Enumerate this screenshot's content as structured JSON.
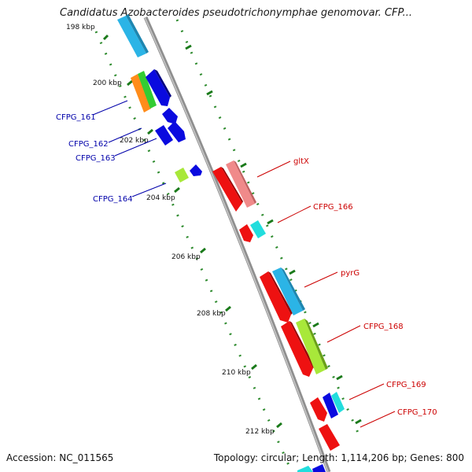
{
  "header": {
    "title": "Candidatus Azobacteroides pseudotrichonymphae genomovar. CFP..."
  },
  "footer": {
    "accession": "Accession: NC_011565",
    "stats": "Topology: circular; Length: 1,114,206 bp; Genes: 800"
  },
  "map": {
    "kbp_labels": [
      "198 kbp",
      "200 kbp",
      "202 kbp",
      "204 kbp",
      "206 kbp",
      "208 kbp",
      "210 kbp",
      "212 kbp"
    ],
    "left_labels": [
      "CFPG_161",
      "CFPG_162",
      "CFPG_163",
      "CFPG_164"
    ],
    "right_labels": [
      "gltX",
      "CFPG_166",
      "pyrG",
      "CFPG_168",
      "CFPG_169",
      "CFPG_170"
    ],
    "colors": {
      "backbone": "#9a9a9a",
      "tick_dots": "#2e8b2e",
      "left_label": "#0000aa",
      "right_label": "#cc0000",
      "red": "#ee1111",
      "pink": "#f08a8a",
      "cyan": "#22dddd",
      "skyblue": "#2bb4e6",
      "lime": "#a8e83a",
      "orange": "#ff8c1a",
      "green": "#33cc33",
      "blue": "#0a0adf"
    }
  }
}
